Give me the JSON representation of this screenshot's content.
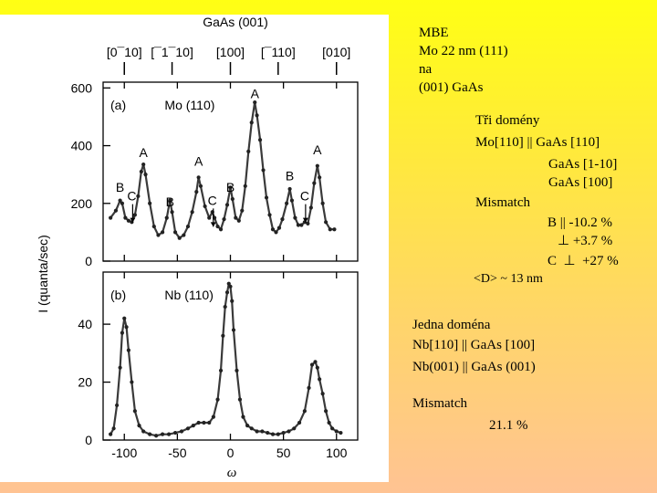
{
  "figure": {
    "title": "GaAs (001)",
    "directions": [
      "[0¯10]",
      "[¯1¯10]",
      "[100]",
      "[¯110]",
      "[010]"
    ],
    "ylabel": "I (quanta/sec)",
    "xlabel": "ω"
  },
  "chart_data": [
    {
      "type": "scatter",
      "panel_label": "(a)",
      "title": "Mo (110)",
      "xlim": [
        -120,
        120
      ],
      "ylim": [
        0,
        620
      ],
      "y_ticks": [
        0,
        200,
        400,
        600
      ],
      "points": [
        [
          -113,
          150
        ],
        [
          -108,
          175
        ],
        [
          -104,
          210
        ],
        [
          -102,
          200
        ],
        [
          -99,
          150
        ],
        [
          -96,
          140
        ],
        [
          -93,
          135
        ],
        [
          -90,
          160
        ],
        [
          -87,
          225
        ],
        [
          -84,
          310
        ],
        [
          -82,
          335
        ],
        [
          -80,
          300
        ],
        [
          -76,
          200
        ],
        [
          -72,
          120
        ],
        [
          -68,
          90
        ],
        [
          -64,
          100
        ],
        [
          -60,
          150
        ],
        [
          -57,
          210
        ],
        [
          -55,
          170
        ],
        [
          -52,
          100
        ],
        [
          -48,
          80
        ],
        [
          -44,
          90
        ],
        [
          -40,
          120
        ],
        [
          -36,
          170
        ],
        [
          -32,
          240
        ],
        [
          -30,
          290
        ],
        [
          -28,
          260
        ],
        [
          -24,
          190
        ],
        [
          -20,
          150
        ],
        [
          -17,
          170
        ],
        [
          -15,
          150
        ],
        [
          -12,
          120
        ],
        [
          -9,
          110
        ],
        [
          -6,
          145
        ],
        [
          -3,
          195
        ],
        [
          0,
          255
        ],
        [
          2,
          215
        ],
        [
          5,
          150
        ],
        [
          8,
          140
        ],
        [
          11,
          175
        ],
        [
          14,
          260
        ],
        [
          17,
          380
        ],
        [
          20,
          480
        ],
        [
          23,
          550
        ],
        [
          25,
          505
        ],
        [
          28,
          420
        ],
        [
          31,
          315
        ],
        [
          34,
          220
        ],
        [
          37,
          160
        ],
        [
          40,
          110
        ],
        [
          43,
          100
        ],
        [
          46,
          115
        ],
        [
          49,
          145
        ],
        [
          53,
          200
        ],
        [
          56,
          250
        ],
        [
          58,
          210
        ],
        [
          61,
          150
        ],
        [
          64,
          125
        ],
        [
          67,
          125
        ],
        [
          70,
          135
        ],
        [
          73,
          130
        ],
        [
          76,
          185
        ],
        [
          79,
          270
        ],
        [
          82,
          330
        ],
        [
          84,
          290
        ],
        [
          87,
          200
        ],
        [
          90,
          135
        ],
        [
          94,
          110
        ],
        [
          98,
          110
        ]
      ],
      "annotations": [
        {
          "label": "A",
          "x": 23,
          "y": 565
        },
        {
          "label": "A",
          "x": -82,
          "y": 360
        },
        {
          "label": "A",
          "x": -30,
          "y": 330
        },
        {
          "label": "A",
          "x": 82,
          "y": 370
        },
        {
          "label": "B",
          "x": -104,
          "y": 240
        },
        {
          "label": "B",
          "x": -57,
          "y": 190
        },
        {
          "label": "B",
          "x": 0,
          "y": 240
        },
        {
          "label": "B",
          "x": 56,
          "y": 280
        },
        {
          "label": "C",
          "x": -93,
          "y": 210
        },
        {
          "label": "C",
          "x": -17,
          "y": 195
        },
        {
          "label": "C",
          "x": 70,
          "y": 210
        }
      ]
    },
    {
      "type": "scatter",
      "panel_label": "(b)",
      "title": "Nb (110)",
      "xlim": [
        -120,
        120
      ],
      "ylim": [
        0,
        58
      ],
      "y_ticks": [
        0,
        20,
        40
      ],
      "x_ticks": [
        -100,
        -50,
        0,
        50,
        100
      ],
      "points": [
        [
          -113,
          2
        ],
        [
          -110,
          4
        ],
        [
          -107,
          12
        ],
        [
          -104,
          25
        ],
        [
          -102,
          37
        ],
        [
          -100,
          42
        ],
        [
          -98,
          39
        ],
        [
          -96,
          31
        ],
        [
          -93,
          20
        ],
        [
          -90,
          10
        ],
        [
          -86,
          5
        ],
        [
          -82,
          3
        ],
        [
          -76,
          2
        ],
        [
          -70,
          1.5
        ],
        [
          -64,
          2
        ],
        [
          -58,
          2
        ],
        [
          -52,
          2.5
        ],
        [
          -46,
          3
        ],
        [
          -40,
          4
        ],
        [
          -35,
          5
        ],
        [
          -30,
          6
        ],
        [
          -25,
          6
        ],
        [
          -20,
          6
        ],
        [
          -16,
          8
        ],
        [
          -12,
          14
        ],
        [
          -9,
          24
        ],
        [
          -7,
          36
        ],
        [
          -5,
          46
        ],
        [
          -3,
          51
        ],
        [
          -1.5,
          54
        ],
        [
          0,
          53
        ],
        [
          1.5,
          48
        ],
        [
          3,
          38
        ],
        [
          6,
          24
        ],
        [
          9,
          14
        ],
        [
          12,
          8
        ],
        [
          16,
          5
        ],
        [
          20,
          4
        ],
        [
          25,
          3
        ],
        [
          30,
          3
        ],
        [
          35,
          2.5
        ],
        [
          40,
          2
        ],
        [
          45,
          2
        ],
        [
          50,
          2.5
        ],
        [
          55,
          3
        ],
        [
          60,
          4
        ],
        [
          65,
          6
        ],
        [
          70,
          10
        ],
        [
          74,
          18
        ],
        [
          77,
          26
        ],
        [
          80,
          27
        ],
        [
          82,
          25
        ],
        [
          84,
          21
        ],
        [
          87,
          16
        ],
        [
          90,
          10
        ],
        [
          93,
          6
        ],
        [
          96,
          4
        ],
        [
          100,
          3
        ],
        [
          104,
          2.5
        ]
      ]
    }
  ],
  "notes": {
    "lines": [
      "MBE",
      "Mo 22 nm (111)",
      "na",
      "(001) GaAs",
      "Tři domény",
      "Mo[110] || GaAs [110]",
      "GaAs [1-10]",
      "GaAs [100]",
      "Mismatch",
      "B || -10.2 %",
      "⊥ +3.7 %",
      "C  ⊥  +27 %",
      "<D> ~ 13 nm",
      "Jedna doména",
      "Nb[110] || GaAs [100]",
      "Nb(001) || GaAs (001)",
      "Mismatch",
      "21.1 %"
    ]
  }
}
